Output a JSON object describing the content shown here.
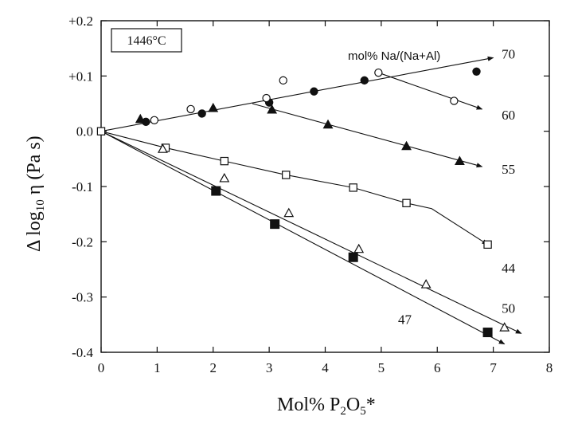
{
  "chart_data": {
    "type": "scatter",
    "xlabel_main": "Mol% P",
    "xlabel_sub": "2",
    "xlabel_o": "O",
    "xlabel_sub2": "5",
    "xlabel_star": "*",
    "ylabel_main": "Δ log",
    "ylabel_sub": "10",
    "ylabel_rest": " η (Pa s)",
    "temperature_label": "1446°C",
    "legend_title": "mol% Na/(Na+Al)",
    "xlim": [
      0,
      8
    ],
    "ylim": [
      -0.4,
      0.2
    ],
    "x_ticks": [
      0,
      1,
      2,
      3,
      4,
      5,
      6,
      7,
      8
    ],
    "x_tick_labels": [
      "0",
      "1",
      "2",
      "3",
      "4",
      "5",
      "6",
      "7",
      "8"
    ],
    "y_ticks": [
      0.2,
      0.1,
      0.0,
      -0.1,
      -0.2,
      -0.3,
      -0.4
    ],
    "y_tick_labels": [
      "+0.2",
      "+0.1",
      "0.0",
      "-0.1",
      "-0.2",
      "-0.3",
      "-0.4"
    ],
    "series": [
      {
        "name": "70",
        "marker": "filled-circle",
        "points": [
          [
            0,
            0
          ],
          [
            0.8,
            0.017
          ],
          [
            1.8,
            0.032
          ],
          [
            3.0,
            0.052
          ],
          [
            3.8,
            0.072
          ],
          [
            4.7,
            0.092
          ],
          [
            6.7,
            0.108
          ]
        ],
        "line": [
          [
            0,
            0
          ],
          [
            7.0,
            0.133
          ]
        ],
        "label_pos": [
          7.15,
          0.14
        ]
      },
      {
        "name": "60",
        "marker": "open-circle",
        "points": [
          [
            0.95,
            0.02
          ],
          [
            1.6,
            0.04
          ],
          [
            2.95,
            0.06
          ],
          [
            3.25,
            0.092
          ],
          [
            4.95,
            0.106
          ],
          [
            6.3,
            0.055
          ]
        ],
        "line": [
          [
            4.95,
            0.106
          ],
          [
            6.8,
            0.04
          ]
        ],
        "label_pos": [
          7.15,
          0.03
        ]
      },
      {
        "name": "55",
        "marker": "filled-triangle",
        "points": [
          [
            0.7,
            0.022
          ],
          [
            2.0,
            0.042
          ],
          [
            3.05,
            0.039
          ],
          [
            4.05,
            0.012
          ],
          [
            5.45,
            -0.027
          ],
          [
            6.4,
            -0.054
          ]
        ],
        "line": [
          [
            2.7,
            0.05
          ],
          [
            6.8,
            -0.064
          ]
        ],
        "label_pos": [
          7.15,
          -0.068
        ]
      },
      {
        "name": "44",
        "marker": "open-square",
        "points": [
          [
            0,
            0
          ],
          [
            1.15,
            -0.03
          ],
          [
            2.2,
            -0.054
          ],
          [
            3.3,
            -0.079
          ],
          [
            4.5,
            -0.102
          ],
          [
            5.45,
            -0.13
          ],
          [
            6.9,
            -0.205
          ]
        ],
        "line": [
          [
            0,
            0
          ],
          [
            1.15,
            -0.03
          ],
          [
            2.2,
            -0.054
          ],
          [
            3.3,
            -0.079
          ],
          [
            4.5,
            -0.102
          ],
          [
            5.45,
            -0.13
          ],
          [
            5.9,
            -0.14
          ],
          [
            6.9,
            -0.205
          ]
        ],
        "label_pos": [
          7.15,
          -0.247
        ]
      },
      {
        "name": "50",
        "marker": "open-triangle",
        "points": [
          [
            1.1,
            -0.032
          ],
          [
            2.2,
            -0.085
          ],
          [
            3.35,
            -0.148
          ],
          [
            4.6,
            -0.213
          ],
          [
            5.8,
            -0.277
          ],
          [
            7.2,
            -0.355
          ]
        ],
        "line": [
          [
            0,
            0
          ],
          [
            7.5,
            -0.366
          ]
        ],
        "label_pos": [
          7.15,
          -0.32
        ]
      },
      {
        "name": "47",
        "marker": "filled-square",
        "points": [
          [
            2.05,
            -0.108
          ],
          [
            3.1,
            -0.168
          ],
          [
            4.5,
            -0.228
          ],
          [
            6.9,
            -0.364
          ]
        ],
        "line": [
          [
            0,
            0
          ],
          [
            7.2,
            -0.385
          ]
        ],
        "label_pos": [
          5.3,
          -0.34
        ]
      }
    ]
  }
}
